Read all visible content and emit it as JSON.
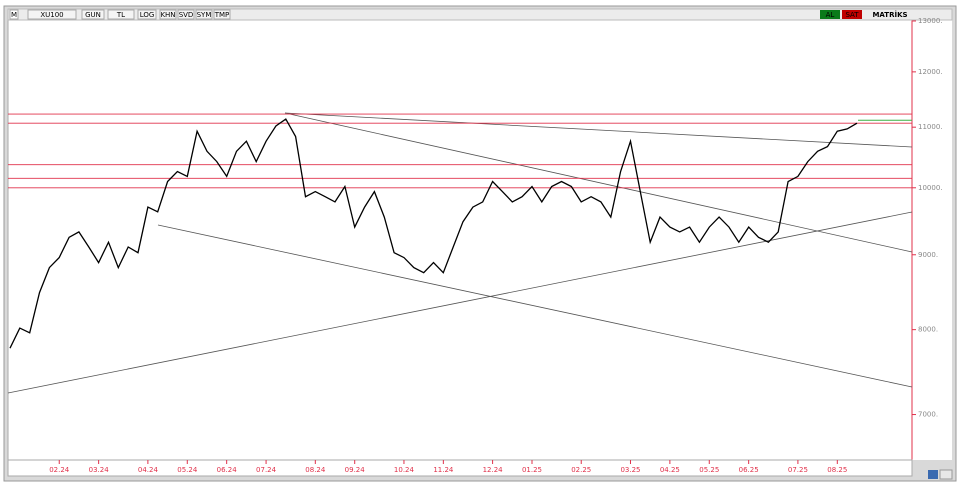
{
  "toolbar": {
    "buttons": [
      "M",
      "XU100",
      "GUN",
      "TL",
      "LOG",
      "KHN",
      "SVD",
      "SYM",
      "TMP"
    ],
    "buy": "AL",
    "sell": "SAT",
    "brand": "MATRİKS"
  },
  "chart_data": {
    "type": "line",
    "log_scale": true,
    "color": "#000000",
    "categories": [
      null,
      null,
      null,
      null,
      null,
      "02.24",
      null,
      null,
      null,
      "03.24",
      null,
      null,
      null,
      null,
      "04.24",
      null,
      null,
      null,
      "05.24",
      null,
      null,
      null,
      "06.24",
      null,
      null,
      null,
      "07.24",
      null,
      null,
      null,
      null,
      "08.24",
      null,
      null,
      null,
      "09.24",
      null,
      null,
      null,
      null,
      "10.24",
      null,
      null,
      null,
      "11.24",
      null,
      null,
      null,
      null,
      "12.24",
      null,
      null,
      null,
      "01.25",
      null,
      null,
      null,
      null,
      "02.25",
      null,
      null,
      null,
      null,
      "03.25",
      null,
      null,
      null,
      "04.25",
      null,
      null,
      null,
      "05.25",
      null,
      null,
      null,
      "06.25",
      null,
      null,
      null,
      null,
      "07.25",
      null,
      null,
      null,
      "08.25",
      null,
      null
    ],
    "values": [
      7770,
      8020,
      7960,
      8480,
      8820,
      8960,
      9250,
      9330,
      9110,
      8890,
      9180,
      8820,
      9110,
      9030,
      9700,
      9630,
      10100,
      10260,
      10180,
      10930,
      10590,
      10420,
      10180,
      10590,
      10760,
      10420,
      10760,
      11020,
      11140,
      10840,
      9860,
      9940,
      9860,
      9780,
      10020,
      9400,
      9700,
      9940,
      9550,
      9030,
      8960,
      8820,
      8750,
      8890,
      8750,
      9110,
      9480,
      9700,
      9780,
      10100,
      9940,
      9780,
      9860,
      10020,
      9780,
      10020,
      10100,
      10020,
      9780,
      9860,
      9780,
      9550,
      10260,
      10760,
      9940,
      9180,
      9550,
      9400,
      9330,
      9400,
      9180,
      9400,
      9550,
      9400,
      9180,
      9400,
      9250,
      9180,
      9330,
      10100,
      10180,
      10420,
      10590,
      10670,
      10930,
      10970,
      11070
    ],
    "ylim": [
      6517,
      13020
    ],
    "yticks": [
      {
        "value": 7000,
        "label": "7000."
      },
      {
        "value": 8000,
        "label": "8000."
      },
      {
        "value": 9000,
        "label": "9000."
      },
      {
        "value": 10000,
        "label": "10000."
      },
      {
        "value": 11000,
        "label": "11000."
      },
      {
        "value": 12000,
        "label": "12000."
      },
      {
        "value": 13000,
        "label": "13000."
      }
    ],
    "hlines": [
      11230,
      11070,
      10370,
      10150,
      10000
    ],
    "hline_color": "#e0304a",
    "green_level": 11120
  }
}
